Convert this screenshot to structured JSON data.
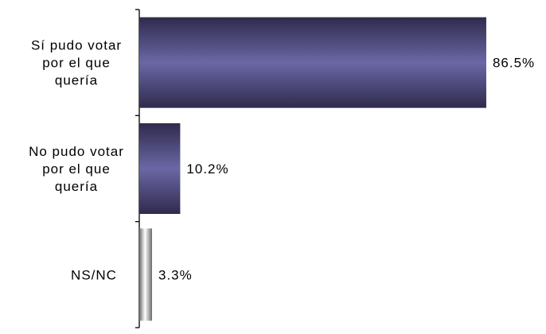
{
  "chart_data": {
    "type": "bar",
    "orientation": "horizontal",
    "categories": [
      [
        "Sí pudo votar",
        "por el que",
        "quería"
      ],
      [
        "No pudo votar",
        "por el que",
        "quería"
      ],
      [
        "NS/NC"
      ]
    ],
    "values": [
      86.5,
      10.2,
      3.3
    ],
    "value_labels": [
      "86.5%",
      "10.2%",
      "3.3%"
    ],
    "xlim": [
      0,
      100
    ],
    "grid": false,
    "colors": {
      "bar_dark": "#2f2b4c",
      "bar_mid": "#6a67a6",
      "na_light": "#ffffff",
      "na_dark": "#6b6b6b",
      "axis": "#000000"
    }
  }
}
